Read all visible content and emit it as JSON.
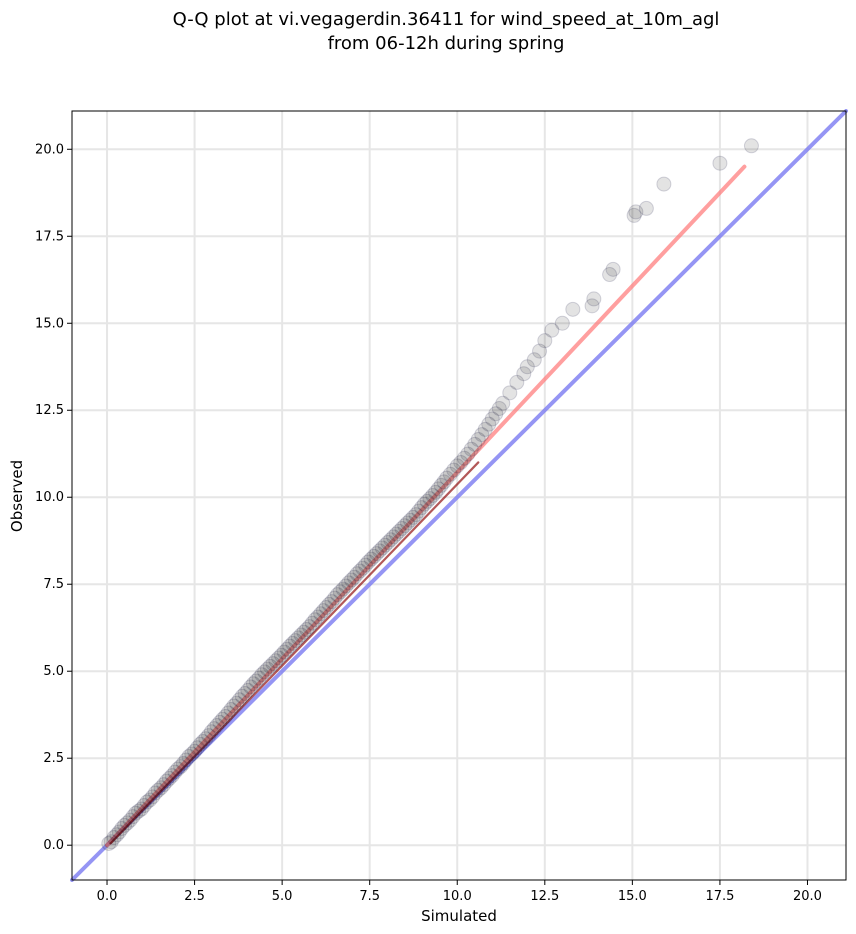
{
  "chart_data": {
    "type": "scatter",
    "title_lines": [
      "Q-Q plot at vi.vegagerdin.36411 for wind_speed_at_10m_agl",
      "from 06-12h during spring"
    ],
    "xlabel": "Simulated",
    "ylabel": "Observed",
    "xlim": [
      -1.0,
      21.1
    ],
    "ylim": [
      -1.0,
      21.1
    ],
    "xticks": [
      0.0,
      2.5,
      5.0,
      7.5,
      10.0,
      12.5,
      15.0,
      17.5,
      20.0
    ],
    "yticks": [
      0.0,
      2.5,
      5.0,
      7.5,
      10.0,
      12.5,
      15.0,
      17.5,
      20.0
    ],
    "xtick_labels": [
      "0.0",
      "2.5",
      "5.0",
      "7.5",
      "10.0",
      "12.5",
      "15.0",
      "17.5",
      "20.0"
    ],
    "ytick_labels": [
      "0.0",
      "2.5",
      "5.0",
      "7.5",
      "10.0",
      "12.5",
      "15.0",
      "17.5",
      "20.0"
    ],
    "grid": true,
    "points": {
      "x": [
        0.05,
        0.12,
        0.2,
        0.28,
        0.35,
        0.42,
        0.5,
        0.58,
        0.66,
        0.74,
        0.82,
        0.9,
        0.98,
        1.06,
        1.14,
        1.22,
        1.3,
        1.38,
        1.46,
        1.54,
        1.62,
        1.7,
        1.78,
        1.86,
        1.94,
        2.02,
        2.1,
        2.18,
        2.26,
        2.34,
        2.42,
        2.5,
        2.58,
        2.66,
        2.74,
        2.82,
        2.9,
        2.98,
        3.06,
        3.14,
        3.22,
        3.3,
        3.38,
        3.46,
        3.54,
        3.62,
        3.7,
        3.78,
        3.86,
        3.94,
        4.02,
        4.1,
        4.18,
        4.26,
        4.34,
        4.42,
        4.5,
        4.58,
        4.66,
        4.74,
        4.82,
        4.9,
        4.98,
        5.06,
        5.14,
        5.22,
        5.3,
        5.38,
        5.46,
        5.54,
        5.62,
        5.7,
        5.78,
        5.86,
        5.94,
        6.02,
        6.1,
        6.18,
        6.26,
        6.34,
        6.42,
        6.5,
        6.58,
        6.66,
        6.74,
        6.82,
        6.9,
        6.98,
        7.06,
        7.14,
        7.22,
        7.3,
        7.38,
        7.46,
        7.54,
        7.62,
        7.7,
        7.78,
        7.86,
        7.94,
        8.02,
        8.1,
        8.18,
        8.26,
        8.34,
        8.42,
        8.5,
        8.58,
        8.66,
        8.74,
        8.82,
        8.9,
        8.98,
        9.06,
        9.14,
        9.22,
        9.3,
        9.38,
        9.46,
        9.54,
        9.62,
        9.7,
        9.8,
        9.9,
        10.0,
        10.1,
        10.2,
        10.3,
        10.4,
        10.5,
        10.6,
        10.7,
        10.8,
        10.9,
        11.0,
        11.1,
        11.2,
        11.3,
        11.5,
        11.7,
        11.9,
        12.0,
        12.2,
        12.35,
        12.5,
        12.7,
        13.0,
        13.3,
        13.85,
        13.9,
        14.35,
        14.45,
        15.05,
        15.1,
        15.4,
        15.9,
        17.5,
        18.4
      ],
      "y": [
        0.05,
        0.1,
        0.22,
        0.3,
        0.38,
        0.48,
        0.57,
        0.64,
        0.72,
        0.82,
        0.92,
        0.98,
        1.04,
        1.14,
        1.24,
        1.3,
        1.39,
        1.5,
        1.58,
        1.65,
        1.74,
        1.84,
        1.92,
        2.0,
        2.1,
        2.19,
        2.26,
        2.35,
        2.45,
        2.55,
        2.62,
        2.7,
        2.8,
        2.9,
        2.98,
        3.06,
        3.15,
        3.26,
        3.35,
        3.44,
        3.53,
        3.62,
        3.7,
        3.8,
        3.9,
        4.0,
        4.08,
        4.18,
        4.28,
        4.36,
        4.45,
        4.55,
        4.64,
        4.72,
        4.8,
        4.9,
        4.98,
        5.06,
        5.14,
        5.22,
        5.3,
        5.38,
        5.46,
        5.55,
        5.63,
        5.72,
        5.8,
        5.88,
        5.96,
        6.04,
        6.12,
        6.2,
        6.28,
        6.38,
        6.48,
        6.56,
        6.65,
        6.74,
        6.83,
        6.92,
        7.0,
        7.1,
        7.2,
        7.28,
        7.36,
        7.45,
        7.54,
        7.62,
        7.7,
        7.8,
        7.88,
        7.96,
        8.05,
        8.14,
        8.22,
        8.3,
        8.38,
        8.46,
        8.54,
        8.62,
        8.7,
        8.78,
        8.86,
        8.94,
        9.02,
        9.1,
        9.18,
        9.26,
        9.34,
        9.42,
        9.5,
        9.6,
        9.7,
        9.8,
        9.88,
        9.96,
        10.05,
        10.14,
        10.24,
        10.34,
        10.44,
        10.55,
        10.66,
        10.78,
        10.9,
        11.0,
        11.12,
        11.24,
        11.38,
        11.52,
        11.66,
        11.8,
        11.95,
        12.1,
        12.25,
        12.4,
        12.55,
        12.7,
        13.0,
        13.3,
        13.55,
        13.75,
        13.95,
        14.2,
        14.5,
        14.8,
        15.0,
        15.4,
        15.5,
        15.7,
        16.4,
        16.55,
        18.1,
        18.2,
        18.3,
        19.0,
        19.6,
        20.1
      ]
    },
    "fit_line": {
      "x": [
        0.0,
        18.2
      ],
      "y": [
        0.0,
        19.5
      ],
      "color": "#ff7f7f"
    },
    "reference_line": {
      "x": [
        -1.0,
        21.1
      ],
      "y": [
        -1.0,
        21.1
      ],
      "color": "#7b7bf2"
    },
    "colors": {
      "point_fill": "#000000",
      "point_stroke": "#1f1f4d",
      "fit_line_dark": "#8b0000",
      "grid": "#e6e6e6",
      "axes": "#000000"
    }
  }
}
